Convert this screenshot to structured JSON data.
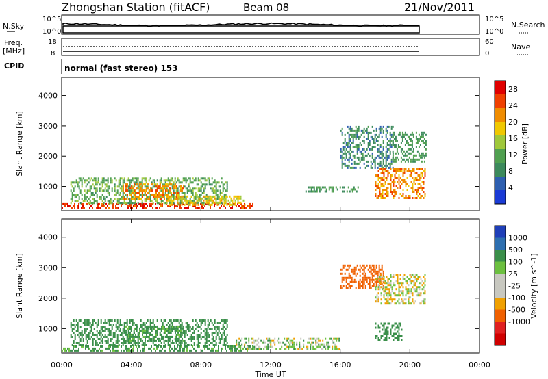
{
  "header": {
    "station": "Zhongshan Station (fitACF)",
    "beam": "Beam 08",
    "date": "21/Nov/2011"
  },
  "noise_panel": {
    "left_label": "N.Sky",
    "right_label": "N.Search",
    "left_ticks": [
      "10^5",
      "10^0"
    ],
    "right_ticks": [
      "10^5",
      "10^0"
    ]
  },
  "freq_panel": {
    "left_label": "Freq.",
    "left_unit": "[MHz]",
    "right_label": "Nave",
    "left_ticks": [
      "18",
      "8"
    ],
    "right_ticks": [
      "60",
      "0"
    ]
  },
  "cpid": {
    "label": "CPID",
    "value": "normal (fast stereo) 153"
  },
  "xaxis": {
    "label": "Time UT",
    "ticks": [
      "00:00",
      "04:00",
      "08:00",
      "12:00",
      "16:00",
      "20:00",
      "00:00"
    ],
    "range_hours": [
      0,
      24
    ],
    "data_end_hours": 20.9
  },
  "colors": {
    "power_scale": [
      "#1a3bd6",
      "#2e5fb0",
      "#3c8a5c",
      "#50a050",
      "#9fc83a",
      "#f0c800",
      "#f08c00",
      "#f04000",
      "#e00000"
    ],
    "velocity_scale": [
      "#1f3fb8",
      "#2d6fb0",
      "#3a8f4a",
      "#6cc040",
      "#c8c8c0",
      "#c8c8c0",
      "#f0a000",
      "#f06000",
      "#e02020",
      "#d00000"
    ]
  },
  "chart_data": [
    {
      "type": "heatmap",
      "title": "",
      "xlabel": "Time UT",
      "ylabel": "Slant Range [km]",
      "ylim": [
        200,
        4600
      ],
      "yticks": [
        1000,
        2000,
        3000,
        4000
      ],
      "colorbar": {
        "label": "Power [dB]",
        "ticks": [
          "4",
          "8",
          "12",
          "16",
          "20",
          "24",
          "28"
        ],
        "range": [
          0,
          30
        ]
      },
      "regions": [
        {
          "x": [
            0,
            11
          ],
          "y": [
            250,
            450
          ],
          "value": 26
        },
        {
          "x": [
            0.5,
            9.5
          ],
          "y": [
            450,
            1300
          ],
          "value": 12
        },
        {
          "x": [
            3.5,
            7.0
          ],
          "y": [
            600,
            1100
          ],
          "value": 22
        },
        {
          "x": [
            6.0,
            10.5
          ],
          "y": [
            400,
            700
          ],
          "value": 18
        },
        {
          "x": [
            14,
            17
          ],
          "y": [
            800,
            1000
          ],
          "value": 10
        },
        {
          "x": [
            16,
            19
          ],
          "y": [
            1600,
            3000
          ],
          "value": 8
        },
        {
          "x": [
            18,
            20.9
          ],
          "y": [
            600,
            1600
          ],
          "value": 22
        },
        {
          "x": [
            19,
            20.9
          ],
          "y": [
            1800,
            2800
          ],
          "value": 10
        }
      ]
    },
    {
      "type": "heatmap",
      "title": "",
      "xlabel": "Time UT",
      "ylabel": "Slant Range [km]",
      "ylim": [
        200,
        4600
      ],
      "yticks": [
        1000,
        2000,
        3000,
        4000
      ],
      "colorbar": {
        "label": "Velocity [m s^-1]",
        "ticks": [
          "1000",
          "500",
          "100",
          "25",
          "-25",
          "-100",
          "-500",
          "-1000"
        ],
        "range": [
          -1000,
          1000
        ]
      },
      "regions": [
        {
          "x": [
            0,
            11
          ],
          "y": [
            250,
            450
          ],
          "value": 150
        },
        {
          "x": [
            0.5,
            9.5
          ],
          "y": [
            450,
            1300
          ],
          "value": 300
        },
        {
          "x": [
            3.5,
            7.0
          ],
          "y": [
            600,
            1100
          ],
          "value": 150
        },
        {
          "x": [
            10,
            16
          ],
          "y": [
            300,
            700
          ],
          "value": 50
        },
        {
          "x": [
            16,
            18.5
          ],
          "y": [
            2300,
            3100
          ],
          "value": -300
        },
        {
          "x": [
            18,
            20.9
          ],
          "y": [
            1800,
            2800
          ],
          "value": 0
        },
        {
          "x": [
            18,
            19.5
          ],
          "y": [
            600,
            1200
          ],
          "value": 200
        }
      ]
    }
  ]
}
